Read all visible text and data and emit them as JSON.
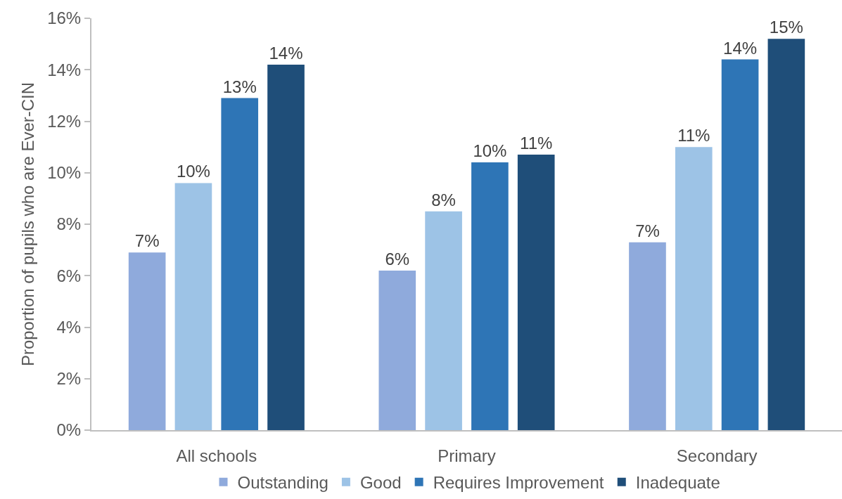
{
  "chart_data": {
    "type": "bar",
    "ylabel": "Proportion of pupils who are Ever-CIN",
    "categories": [
      "All schools",
      "Primary",
      "Secondary"
    ],
    "series": [
      {
        "name": "Outstanding",
        "color": "#8faadc",
        "values": [
          6.9,
          6.2,
          7.3
        ],
        "value_labels": [
          "7%",
          "6%",
          "7%"
        ]
      },
      {
        "name": "Good",
        "color": "#9dc3e6",
        "values": [
          9.6,
          8.5,
          11.0
        ],
        "value_labels": [
          "10%",
          "8%",
          "11%"
        ]
      },
      {
        "name": "Requires Improvement",
        "color": "#2e75b6",
        "values": [
          12.9,
          10.4,
          14.4
        ],
        "value_labels": [
          "13%",
          "10%",
          "14%"
        ]
      },
      {
        "name": "Inadequate",
        "color": "#1f4e79",
        "values": [
          14.2,
          10.7,
          15.2
        ],
        "value_labels": [
          "14%",
          "11%",
          "15%"
        ]
      }
    ],
    "ylim": [
      0,
      16
    ],
    "yticks": [
      {
        "value": 0,
        "label": "0%"
      },
      {
        "value": 2,
        "label": "2%"
      },
      {
        "value": 4,
        "label": "4%"
      },
      {
        "value": 6,
        "label": "6%"
      },
      {
        "value": 8,
        "label": "8%"
      },
      {
        "value": 10,
        "label": "10%"
      },
      {
        "value": 12,
        "label": "12%"
      },
      {
        "value": 14,
        "label": "14%"
      },
      {
        "value": 16,
        "label": "16%"
      }
    ],
    "legend": "bottom",
    "grid": false
  }
}
